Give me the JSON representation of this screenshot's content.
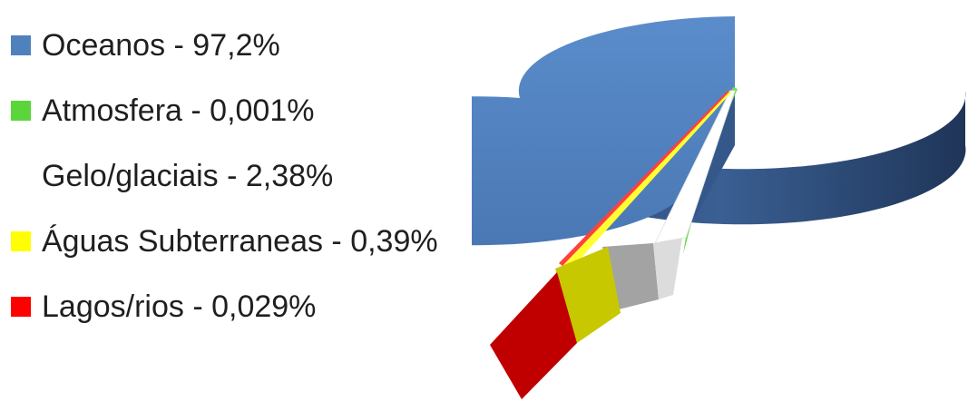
{
  "chart_data": {
    "type": "pie",
    "title": "",
    "style": "3d-exploded",
    "legend_position": "left",
    "slices": [
      {
        "label": "Oceanos - 97,2%",
        "value": 97.2,
        "color": "#4F81BD"
      },
      {
        "label": "Atmosfera - 0,001%",
        "value": 0.001,
        "color": "#5AD63C"
      },
      {
        "label": "Gelo/glaciais - 2,38%",
        "value": 2.38,
        "color": "#FFFFFF"
      },
      {
        "label": "Águas Subterraneas - 0,39%",
        "value": 0.39,
        "color": "#FFFF00"
      },
      {
        "label": "Lagos/rios - 0,029%",
        "value": 0.029,
        "color": "#FF0000"
      }
    ]
  }
}
